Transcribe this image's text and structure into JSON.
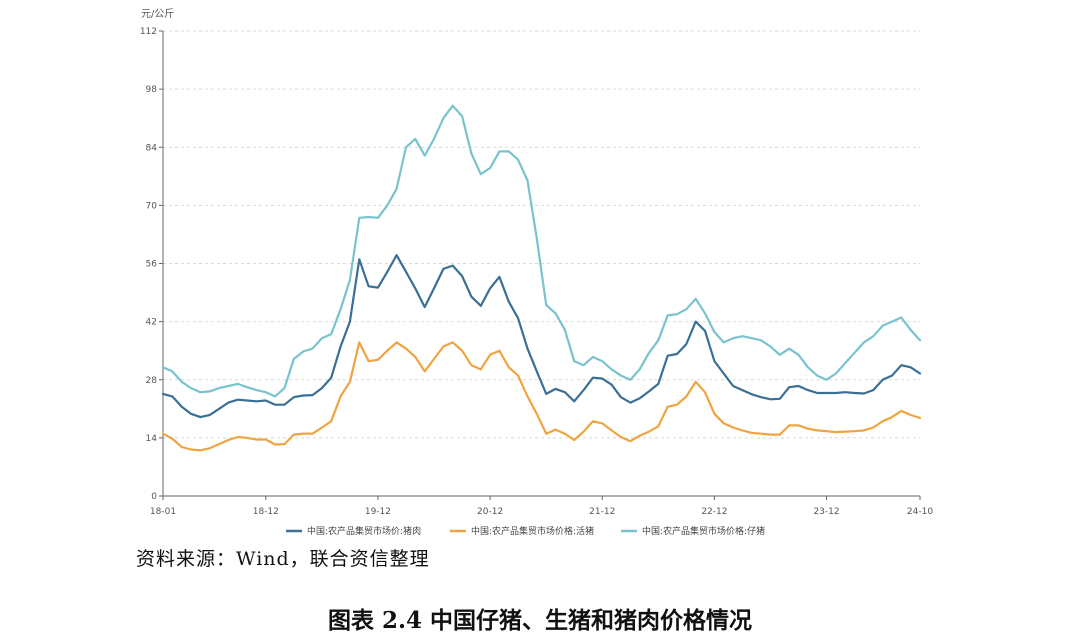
{
  "source_text": "资料来源：Wind，联合资信整理",
  "figure_title": "图表 2.4    中国仔猪、生猪和猪肉价格情况",
  "chart_data": {
    "type": "line",
    "unit_label": "元/公斤",
    "ylim": [
      0,
      112
    ],
    "yticks": [
      0,
      14,
      28,
      42,
      56,
      70,
      84,
      98,
      112
    ],
    "x_tick_labels": [
      "18-01",
      "18-12",
      "19-12",
      "20-12",
      "21-12",
      "22-12",
      "23-12",
      "24-10"
    ],
    "x_tick_index": [
      0,
      11,
      23,
      35,
      47,
      59,
      71,
      81
    ],
    "grid": true,
    "legend_position": "bottom",
    "series": [
      {
        "name": "中国:农产品集贸市场价:猪肉",
        "color": "#3a6f96",
        "values": [
          24.6,
          24.0,
          21.5,
          19.8,
          19.0,
          19.5,
          21.0,
          22.5,
          23.2,
          23.0,
          22.8,
          23.0,
          22.0,
          22.0,
          23.8,
          24.2,
          24.3,
          26.0,
          28.5,
          36.0,
          42.0,
          57.0,
          50.5,
          50.2,
          54.0,
          58.0,
          54.0,
          50.0,
          45.5,
          50.0,
          54.7,
          55.5,
          53.0,
          48.0,
          45.8,
          50.0,
          52.8,
          46.8,
          42.8,
          35.5,
          30.0,
          24.6,
          25.8,
          25.0,
          22.8,
          25.5,
          28.5,
          28.3,
          26.8,
          23.8,
          22.5,
          23.5,
          25.2,
          27.0,
          33.8,
          34.2,
          36.6,
          42.0,
          39.8,
          32.5,
          29.5,
          26.5,
          25.5,
          24.5,
          23.8,
          23.3,
          23.4,
          26.2,
          26.5,
          25.5,
          24.8,
          24.8,
          24.8,
          25.0,
          24.8,
          24.7,
          25.5,
          28.0,
          29.0,
          31.5,
          31.0,
          29.5
        ]
      },
      {
        "name": "中国:农产品集贸市场价格:活猪",
        "color": "#f0a340",
        "values": [
          15.0,
          13.8,
          11.8,
          11.2,
          11.0,
          11.5,
          12.5,
          13.5,
          14.2,
          14.0,
          13.6,
          13.6,
          12.4,
          12.5,
          14.8,
          15.0,
          15.0,
          16.5,
          18.0,
          24.0,
          27.5,
          37.0,
          32.5,
          32.8,
          35.0,
          37.0,
          35.5,
          33.5,
          30.0,
          33.0,
          36.0,
          37.0,
          35.0,
          31.5,
          30.5,
          34.0,
          35.0,
          31.0,
          29.0,
          24.0,
          19.8,
          15.0,
          16.0,
          15.0,
          13.5,
          15.5,
          18.0,
          17.5,
          15.8,
          14.2,
          13.2,
          14.5,
          15.5,
          16.8,
          21.5,
          22.0,
          24.0,
          27.5,
          25.0,
          19.8,
          17.5,
          16.5,
          15.8,
          15.2,
          15.0,
          14.8,
          14.8,
          17.0,
          17.0,
          16.2,
          15.8,
          15.6,
          15.4,
          15.5,
          15.6,
          15.8,
          16.5,
          18.0,
          19.0,
          20.5,
          19.5,
          18.8
        ]
      },
      {
        "name": "中国:农产品集贸市场价格:仔猪",
        "color": "#78c3ce",
        "values": [
          31.0,
          30.0,
          27.5,
          26.0,
          25.0,
          25.2,
          26.0,
          26.5,
          27.0,
          26.2,
          25.5,
          25.0,
          24.0,
          26.0,
          33.0,
          34.8,
          35.5,
          38.0,
          39.0,
          45.0,
          52.0,
          67.0,
          67.2,
          67.0,
          70.0,
          74.0,
          84.0,
          86.0,
          82.0,
          86.0,
          91.0,
          94.0,
          91.5,
          82.5,
          77.5,
          79.0,
          83.0,
          83.0,
          81.0,
          76.0,
          62.0,
          46.0,
          44.0,
          40.0,
          32.5,
          31.5,
          33.5,
          32.5,
          30.5,
          29.0,
          28.0,
          30.5,
          34.5,
          37.5,
          43.5,
          43.8,
          45.0,
          47.5,
          44.0,
          39.5,
          37.0,
          38.0,
          38.5,
          38.0,
          37.5,
          36.0,
          34.0,
          35.5,
          34.0,
          31.0,
          29.0,
          28.0,
          29.5,
          32.0,
          34.5,
          37.0,
          38.5,
          41.0,
          42.0,
          43.0,
          40.0,
          37.5
        ]
      }
    ]
  }
}
